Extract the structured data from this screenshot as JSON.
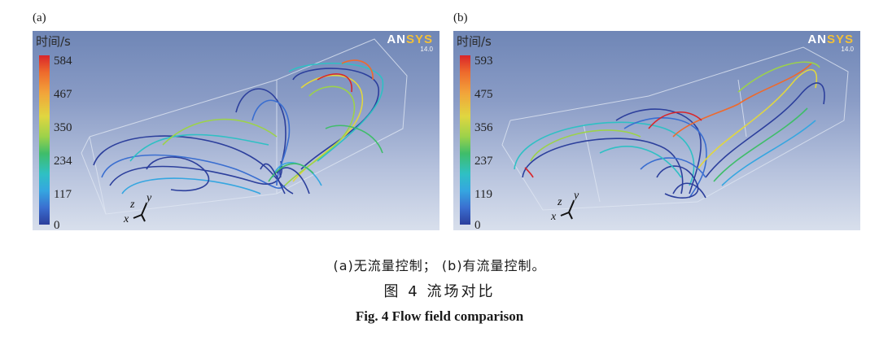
{
  "figure": {
    "panels": [
      {
        "label": "(a)",
        "legend_title": "时间/s",
        "colorbar_ticks": [
          "584",
          "467",
          "350",
          "234",
          "117",
          "0"
        ],
        "logo_prefix": "AN",
        "logo_suffix": "SYS",
        "logo_version": "14.0",
        "axes": [
          "z",
          "y",
          "x"
        ]
      },
      {
        "label": "(b)",
        "legend_title": "时间/s",
        "colorbar_ticks": [
          "593",
          "475",
          "356",
          "237",
          "119",
          "0"
        ],
        "logo_prefix": "AN",
        "logo_suffix": "SYS",
        "logo_version": "14.0",
        "axes": [
          "z",
          "y",
          "x"
        ]
      }
    ],
    "subcaption": "(a)无流量控制； (b)有流量控制。",
    "caption_cn": "图 4   流场对比",
    "caption_en": "Fig. 4    Flow field comparison",
    "colormap": [
      "#2c3f9c",
      "#3a6ed0",
      "#35a6e0",
      "#2fc0c4",
      "#3fbd6a",
      "#9cd24a",
      "#e0d640",
      "#f2a33a",
      "#ee6a2c",
      "#d9252a"
    ]
  }
}
